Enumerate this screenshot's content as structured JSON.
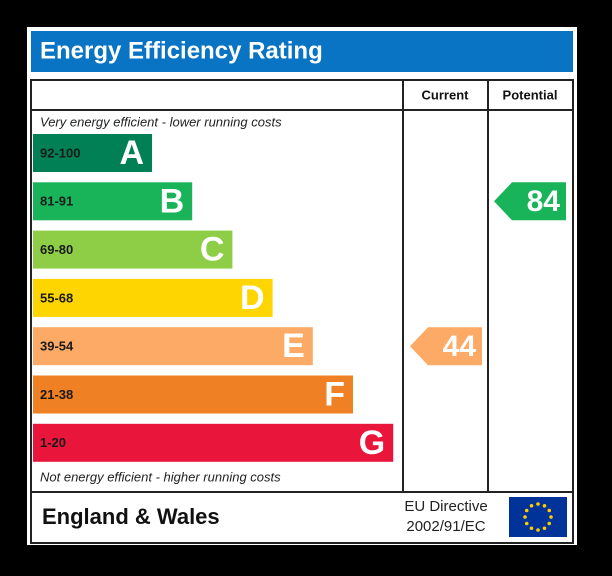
{
  "header": {
    "title": "Energy Efficiency Rating"
  },
  "columns": [
    "Current",
    "Potential"
  ],
  "top_note": "Very energy efficient - lower running costs",
  "bottom_note": "Not energy efficient - higher running costs",
  "bands": [
    {
      "range": "92-100",
      "letter": "A",
      "color": "#008054"
    },
    {
      "range": "81-91",
      "letter": "B",
      "color": "#19b459"
    },
    {
      "range": "69-80",
      "letter": "C",
      "color": "#8dce46"
    },
    {
      "range": "55-68",
      "letter": "D",
      "color": "#ffd500"
    },
    {
      "range": "39-54",
      "letter": "E",
      "color": "#fcaa65"
    },
    {
      "range": "21-38",
      "letter": "F",
      "color": "#ef8023"
    },
    {
      "range": "1-20",
      "letter": "G",
      "color": "#e9153b"
    }
  ],
  "ratings": {
    "current": 44,
    "potential": 84
  },
  "footer": {
    "region": "England & Wales",
    "directive": [
      "EU Directive",
      "2002/91/EC"
    ]
  }
}
